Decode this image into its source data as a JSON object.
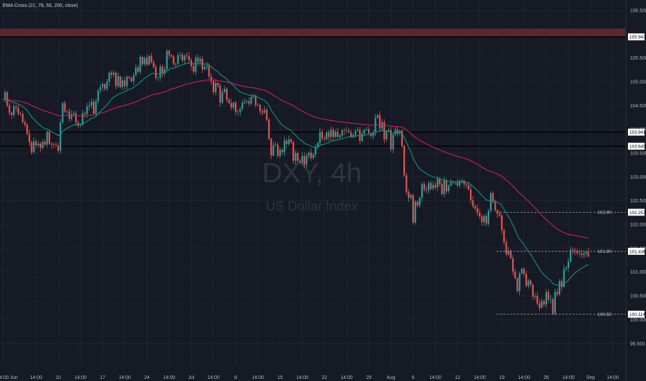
{
  "legend": {
    "indicator": "EMA Cross (21, 78, 50, 200, close)"
  },
  "watermark": {
    "symbol": "DXY, 4h",
    "name": "US Dollar Index"
  },
  "colors": {
    "background": "#161a25",
    "grid": "#1f2431",
    "up_candle": "#26a69a",
    "down_candle": "#ef5350",
    "ema_fast": "#089981",
    "ema_slow": "#d81b60",
    "zone": "#5e2a30",
    "hline": "#000000",
    "dashed": "#9aa0ab",
    "axis_text": "#b2b5be"
  },
  "chart_data": {
    "type": "candlestick",
    "symbol": "DXY",
    "timeframe": "4h",
    "title": "US Dollar Index",
    "y_axis": {
      "ticks": [
        "106.500",
        "105.500",
        "105.000",
        "104.500",
        "104.000",
        "103.500",
        "103.000",
        "102.500",
        "102.000",
        "101.500",
        "101.000",
        "100.500",
        "100.000",
        "99.500"
      ],
      "range": [
        99.22,
        106.66
      ]
    },
    "x_axis": {
      "labels": [
        {
          "label": "14:00",
          "i": 0
        },
        {
          "label": "Jun",
          "i": 5
        },
        {
          "label": "14:00",
          "i": 15
        },
        {
          "label": "10",
          "i": 25
        },
        {
          "label": "14:00",
          "i": 35
        },
        {
          "label": "17",
          "i": 45
        },
        {
          "label": "14:00",
          "i": 55
        },
        {
          "label": "24",
          "i": 65
        },
        {
          "label": "14:00",
          "i": 75
        },
        {
          "label": "Jul",
          "i": 85
        },
        {
          "label": "14:00",
          "i": 95
        },
        {
          "label": "8",
          "i": 105
        },
        {
          "label": "14:00",
          "i": 115
        },
        {
          "label": "15",
          "i": 125
        },
        {
          "label": "14:00",
          "i": 135
        },
        {
          "label": "22",
          "i": 145
        },
        {
          "label": "14:00",
          "i": 155
        },
        {
          "label": "29",
          "i": 165
        },
        {
          "label": "Aug",
          "i": 175
        },
        {
          "label": "6",
          "i": 185
        },
        {
          "label": "14:00",
          "i": 195
        },
        {
          "label": "12",
          "i": 205
        },
        {
          "label": "14:00",
          "i": 215
        },
        {
          "label": "19",
          "i": 225
        },
        {
          "label": "14:00",
          "i": 235
        },
        {
          "label": "26",
          "i": 245
        },
        {
          "label": "14:00",
          "i": 255
        },
        {
          "label": "Sep",
          "i": 265
        },
        {
          "label": "14:00",
          "i": 275
        }
      ]
    },
    "closes": [
      104.62,
      104.78,
      104.5,
      104.35,
      104.3,
      104.48,
      104.45,
      104.32,
      104.32,
      104.15,
      104.1,
      103.9,
      103.73,
      103.52,
      103.75,
      103.66,
      103.7,
      103.61,
      103.74,
      103.68,
      103.95,
      103.7,
      103.68,
      103.68,
      103.66,
      103.55,
      104.15,
      104.55,
      104.37,
      104.38,
      104.22,
      104.32,
      104.34,
      104.15,
      104.08,
      104.1,
      104.34,
      104.32,
      104.48,
      104.5,
      104.58,
      104.33,
      104.59,
      104.82,
      104.89,
      104.95,
      104.85,
      105.0,
      105.19,
      105.15,
      105.19,
      104.91,
      105.11,
      104.89,
      105.03,
      104.91,
      105.1,
      105.08,
      105.01,
      105.14,
      105.3,
      105.21,
      105.52,
      105.37,
      105.5,
      105.36,
      105.54,
      105.41,
      105.31,
      105.08,
      105.09,
      105.32,
      105.17,
      105.26,
      105.65,
      105.56,
      105.53,
      105.37,
      105.38,
      105.56,
      105.57,
      105.45,
      105.55,
      105.54,
      105.45,
      105.33,
      105.21,
      105.5,
      105.42,
      105.48,
      105.26,
      105.31,
      105.33,
      105.11,
      105.01,
      104.78,
      104.97,
      104.92,
      104.56,
      104.79,
      104.85,
      104.62,
      104.55,
      104.46,
      104.56,
      104.36,
      104.37,
      104.43,
      104.56,
      104.58,
      104.59,
      104.54,
      104.68,
      104.69,
      104.51,
      104.51,
      104.38,
      104.35,
      104.41,
      104.2,
      103.8,
      103.45,
      103.67,
      103.68,
      103.44,
      103.57,
      103.52,
      103.76,
      103.69,
      103.79,
      103.73,
      103.34,
      103.5,
      103.34,
      103.3,
      103.44,
      103.26,
      103.45,
      103.51,
      103.4,
      103.47,
      103.63,
      103.71,
      103.95,
      103.81,
      103.79,
      103.94,
      103.84,
      103.99,
      103.84,
      103.95,
      103.84,
      103.87,
      103.98,
      103.97,
      103.97,
      103.94,
      103.85,
      103.88,
      103.97,
      103.99,
      103.76,
      103.91,
      103.99,
      104.0,
      103.92,
      103.86,
      103.94,
      104.24,
      104.3,
      104.02,
      104.15,
      103.79,
      103.96,
      103.98,
      103.58,
      103.89,
      103.99,
      103.91,
      103.97,
      103.65,
      103.03,
      102.68,
      102.56,
      102.62,
      102.04,
      102.48,
      102.4,
      102.56,
      102.85,
      102.73,
      102.72,
      102.87,
      102.75,
      102.83,
      102.78,
      102.96,
      102.85,
      102.64,
      102.93,
      102.7,
      102.82,
      102.88,
      102.88,
      102.88,
      102.82,
      102.92,
      102.92,
      102.85,
      102.83,
      102.74,
      102.51,
      102.38,
      102.34,
      102.25,
      102.17,
      102.05,
      102.18,
      102.02,
      102.29,
      102.66,
      102.47,
      102.3,
      102.23,
      102.19,
      101.88,
      101.63,
      101.37,
      101.45,
      101.29,
      101.01,
      100.87,
      100.6,
      100.97,
      101.07,
      100.96,
      100.71,
      100.82,
      100.74,
      100.48,
      100.5,
      100.34,
      100.25,
      100.39,
      100.32,
      100.58,
      100.42,
      100.43,
      100.13,
      100.58,
      100.53,
      100.81,
      100.69,
      101.06,
      101.09,
      101.22,
      101.47,
      101.45,
      101.43,
      101.4,
      101.39,
      101.36,
      101.39,
      101.42,
      101.33
    ],
    "horizontal_levels": [
      {
        "price": 105.943,
        "label": "105.943",
        "style": "solid"
      },
      {
        "price": 103.941,
        "label": "103.941",
        "style": "solid"
      },
      {
        "price": 103.645,
        "label": "103.645",
        "style": "solid"
      },
      {
        "price": 102.257,
        "label": "102.80",
        "value_label": "102.257",
        "style": "dashed"
      },
      {
        "price": 101.436,
        "label": "101.80",
        "value_label": "101.436",
        "style": "dashed"
      },
      {
        "price": 100.114,
        "label": "100.50",
        "value_label": "100.114",
        "style": "dashed"
      }
    ],
    "zone": {
      "from": 105.94,
      "to": 106.12
    },
    "ema_periods": {
      "fast": 21,
      "slow": 78
    }
  }
}
